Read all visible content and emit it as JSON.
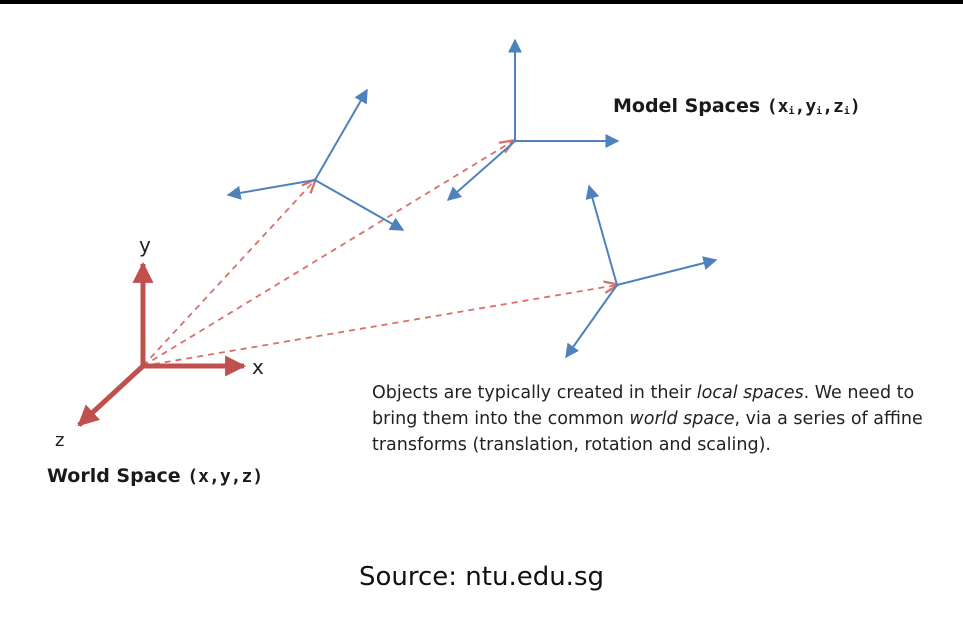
{
  "labels": {
    "world_axis_y": "y",
    "world_axis_x": "x",
    "world_axis_z": "z",
    "world_space_name": "World Space",
    "world_space_coords": "(x,y,z)",
    "model_spaces_name": "Model Spaces",
    "model_coords_open": "(x",
    "model_sub_1": "i",
    "model_coords_mid1": ",y",
    "model_sub_2": "i",
    "model_coords_mid2": ",z",
    "model_sub_3": "i",
    "model_coords_close": ")"
  },
  "caption": {
    "part1": "Objects are typically created in their ",
    "em1": "local spaces",
    "part2": ". We need to bring them into the common ",
    "em2": "world space",
    "part3": ", via a series of affine transforms (translation, rotation and scaling)."
  },
  "source": "Source: ntu.edu.sg",
  "colors": {
    "world_axes": "#c0504d",
    "model_axes": "#4f81bd",
    "transform_arrows": "#d9706b",
    "text": "#1a1a1a"
  }
}
